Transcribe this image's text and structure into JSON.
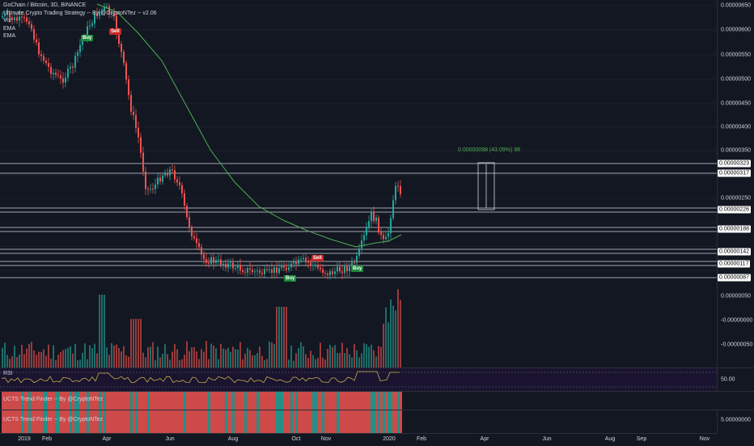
{
  "legend": {
    "title": "GoChain / Bitcoin, 3D, BINANCE",
    "strategy": "Ultimate Crypto Trading Strategy -- By @CryptoNTez -- v2.06",
    "lines": [
      "Vol",
      "EMA",
      "EMA"
    ]
  },
  "price_axis": {
    "labels": [
      "0.00000650",
      "0.00000600",
      "0.00000550",
      "0.00000500",
      "0.00000450",
      "0.00000400",
      "0.00000350",
      "0.00000300",
      "0.00000250",
      "0.00000200"
    ],
    "boxes": [
      "0.00000323",
      "0.00000317",
      "0.00000226",
      "0.00000188",
      "0.00000142",
      "0.00000117",
      "0.00000087"
    ]
  },
  "measure_label": "0.00000098 (43.09%) 98",
  "signals": [
    {
      "label": "Buy",
      "type": "buy"
    },
    {
      "label": "Sell",
      "type": "sell"
    },
    {
      "label": "Sell",
      "type": "sell"
    },
    {
      "label": "Buy",
      "type": "buy"
    },
    {
      "label": "Buy",
      "type": "buy"
    }
  ],
  "volume_axis": [
    "0.00000050",
    "-0.00000000",
    "-0.00000050"
  ],
  "rsi": {
    "title": "RSI",
    "value_label": "50.00"
  },
  "trend1": {
    "title": "UCTS Trend Finder -- By @CryptoNTez"
  },
  "trend2": {
    "title": "UCTS Trend Finder -- By @CryptoNTez",
    "axis_label": "5.00000000"
  },
  "time_axis": [
    "2019",
    "Feb",
    "Apr",
    "Jun",
    "Aug",
    "Oct",
    "Nov",
    "2020",
    "Feb",
    "Apr",
    "Jun",
    "Aug",
    "Sep",
    "Nov"
  ],
  "colors": {
    "up": "#26a69a",
    "down": "#ef5350",
    "ema": "#4caf50",
    "rsi": "#c9b04a",
    "buy": "#1b8a3a",
    "sell": "#c62828"
  }
}
